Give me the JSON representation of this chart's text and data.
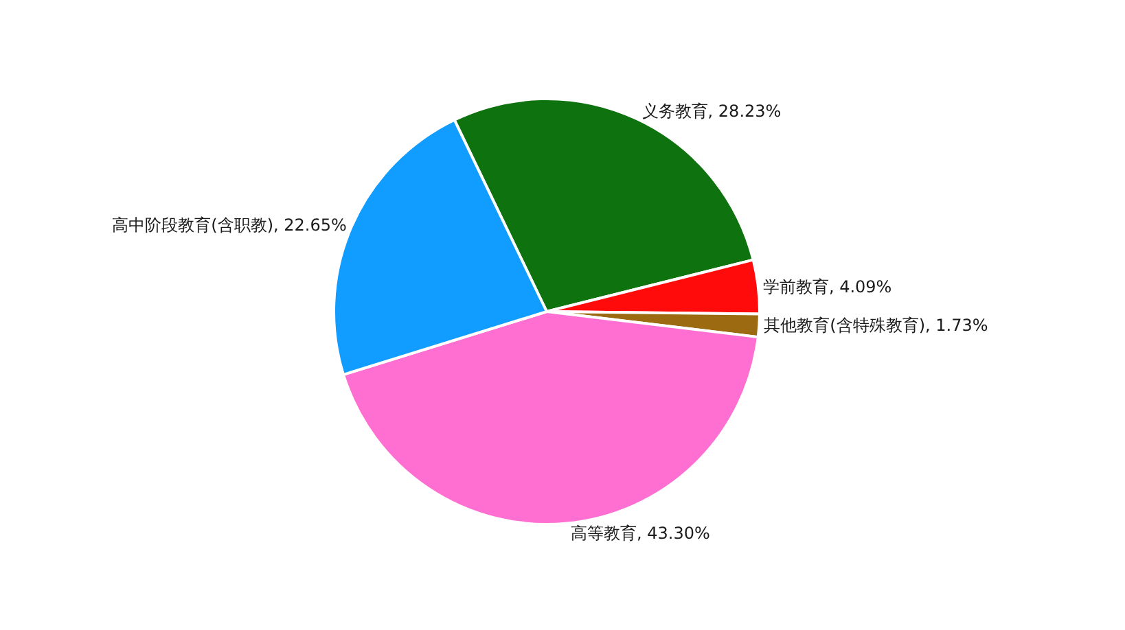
{
  "chart_data": {
    "type": "pie",
    "categories": [
      "义务教育",
      "学前教育",
      "其他教育(含特殊教育)",
      "高等教育",
      "高中阶段教育(含职教)"
    ],
    "values": [
      28.23,
      4.09,
      1.73,
      43.3,
      22.65
    ],
    "value_labels": [
      "28.23%",
      "4.09%",
      "1.73%",
      "43.30%",
      "22.65%"
    ],
    "colors": [
      "#0e730e",
      "#ff0b0b",
      "#9c6a10",
      "#ff6fd2",
      "#119cff"
    ]
  }
}
